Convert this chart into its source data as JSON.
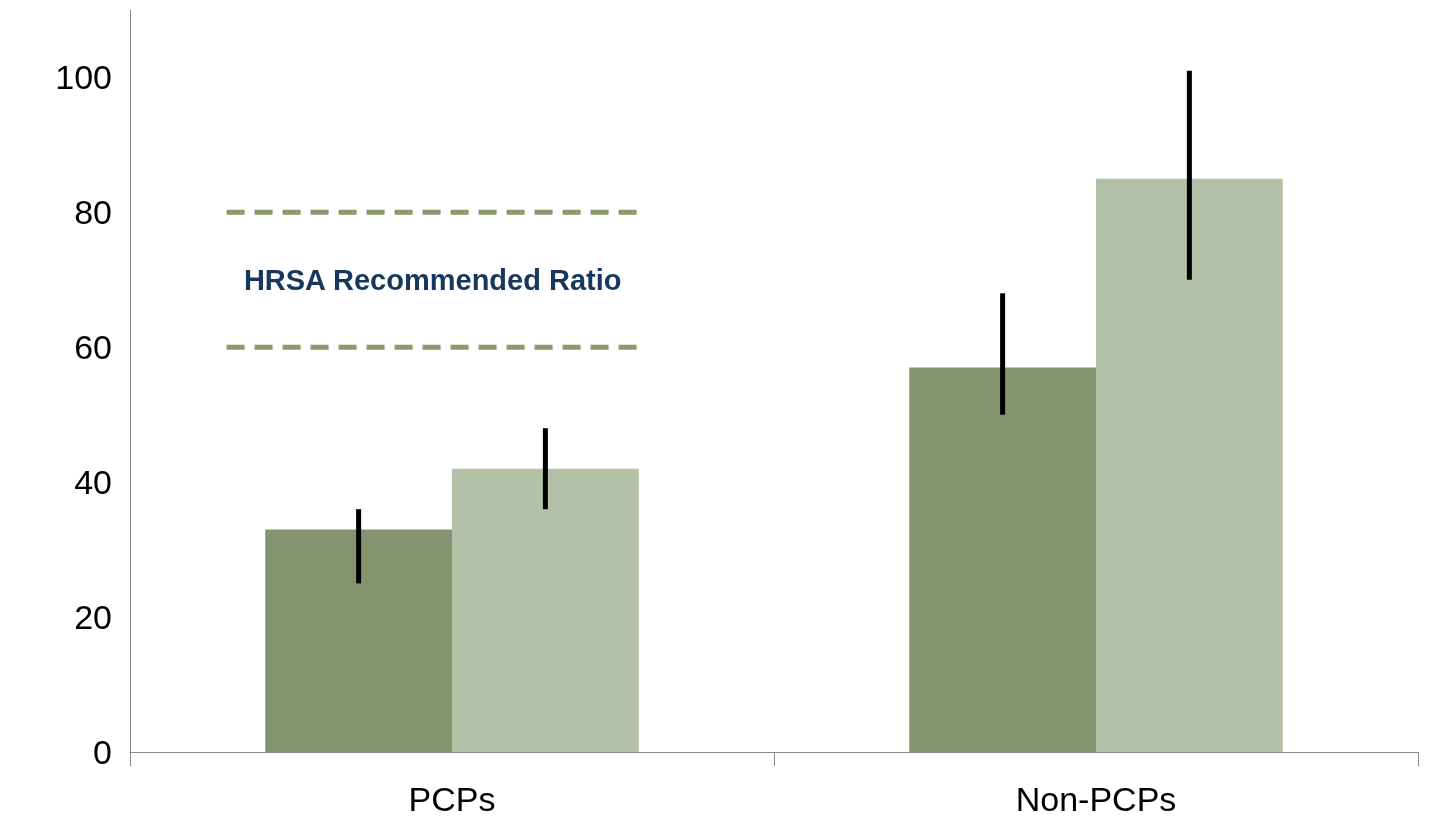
{
  "chart_data": {
    "type": "bar",
    "categories": [
      "PCPs",
      "Non-PCPs"
    ],
    "series": [
      {
        "color": "#85936f",
        "values": [
          33,
          57
        ],
        "errors": [
          [
            25,
            36
          ],
          [
            50,
            68
          ]
        ]
      },
      {
        "color": "#b5c1a6",
        "values": [
          42,
          85
        ],
        "errors": [
          [
            36,
            48
          ],
          [
            70,
            101
          ]
        ]
      }
    ],
    "ylim": [
      0,
      110
    ],
    "yticks": [
      0,
      20,
      40,
      60,
      80,
      100
    ],
    "grid": false,
    "ref_lines": [
      {
        "axis": "y",
        "value": 80,
        "color": "#8a9a6e",
        "line_style": "dashed"
      },
      {
        "axis": "y",
        "value": 60,
        "color": "#8a9a6e",
        "line_style": "dashed"
      }
    ],
    "annotations": [
      "HRSA Recommended Ratio"
    ]
  }
}
